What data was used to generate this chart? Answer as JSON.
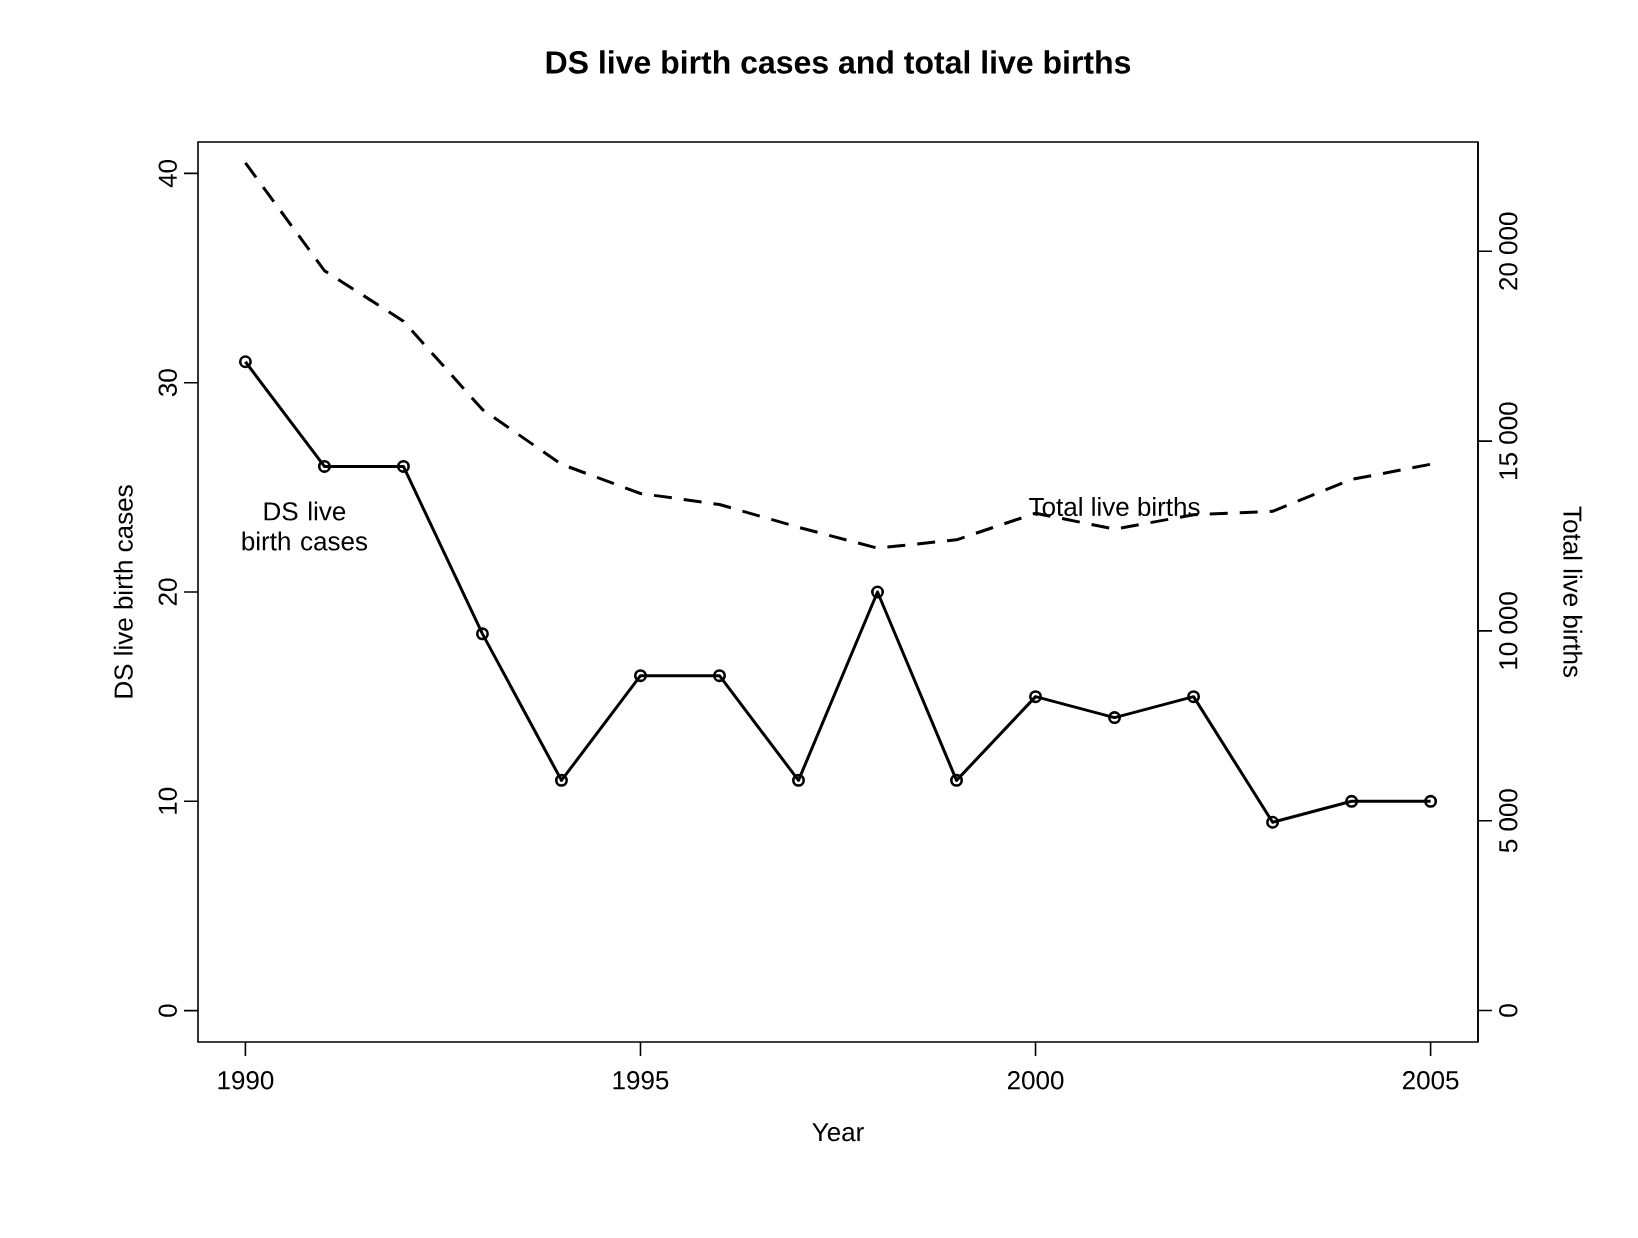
{
  "chart_data": {
    "type": "line",
    "title": "DS live birth cases and total live births",
    "xlabel": "Year",
    "ylabel": "DS live birth cases",
    "y2label": "Total live births",
    "x": [
      1990,
      1991,
      1992,
      1993,
      1994,
      1995,
      1996,
      1997,
      1998,
      1999,
      2000,
      2001,
      2002,
      2003,
      2004,
      2005
    ],
    "series": [
      {
        "name": "DS live birth cases",
        "color": "#000000",
        "marker": "circle",
        "line_style": "solid",
        "values": [
          31,
          26,
          26,
          18,
          11,
          16,
          16,
          11,
          20,
          11,
          15,
          14,
          15,
          9,
          10,
          10
        ]
      },
      {
        "name": "Total live births",
        "color": "#000000",
        "marker": "none",
        "line_style": "dashed",
        "axis": "y2",
        "values": [
          22330,
          19490,
          18160,
          15830,
          14390,
          13620,
          13330,
          12730,
          12180,
          12400,
          13100,
          12680,
          13060,
          13150,
          13990,
          14390
        ]
      }
    ],
    "xlim": [
      1989.4,
      2005.6
    ],
    "xticks": [
      1990,
      1995,
      2000,
      2005
    ],
    "ylim": [
      -1.5,
      41.5
    ],
    "yticks": [
      0,
      10,
      20,
      30,
      40
    ],
    "y2lim": [
      -830,
      22880
    ],
    "y2ticks": [
      0,
      {
        "value": 5000,
        "label": "5 000"
      },
      {
        "value": 10000,
        "label": "10 000"
      },
      {
        "value": 15000,
        "label": "15 000"
      },
      {
        "value": 20000,
        "label": "20 000"
      }
    ]
  }
}
